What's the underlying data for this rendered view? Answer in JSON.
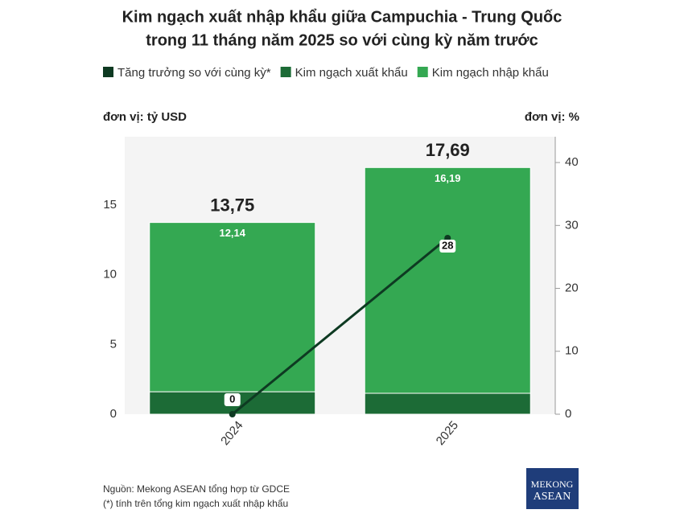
{
  "chart_data": {
    "type": "bar",
    "stacked": true,
    "title": [
      "Kim ngạch xuất nhập khẩu giữa Campuchia - Trung Quốc",
      "trong 11 tháng năm 2025 so với cùng kỳ năm trước"
    ],
    "y_label": "đơn vị: tỷ USD",
    "y2_label": "đơn vị: %",
    "categories": [
      "2024",
      "2025"
    ],
    "series": [
      {
        "name": "Tăng trưởng so với cùng kỳ*",
        "type": "line",
        "axis": "y2",
        "color": "#0e3a22",
        "values": [
          0,
          28
        ]
      },
      {
        "name": "Kim ngạch xuất khẩu",
        "color": "#1c6b36",
        "values": [
          1.61,
          1.5
        ]
      },
      {
        "name": "Kim ngạch nhập khẩu",
        "color": "#34a852",
        "values": [
          12.14,
          16.19
        ],
        "value_labels": [
          "12,14",
          "16,19"
        ]
      }
    ],
    "totals": [
      13.75,
      17.69
    ],
    "total_labels": [
      "13,75",
      "17,69"
    ],
    "ylim": [
      0,
      19.9
    ],
    "yticks": [
      0,
      5,
      10,
      15
    ],
    "y2lim": [
      0,
      44.1
    ],
    "y2ticks": [
      0,
      10,
      20,
      30,
      40
    ],
    "notes": [
      "Nguồn: Mekong ASEAN tổng hợp từ GDCE",
      "(*) tính trên tổng kim ngạch xuất nhập khẩu"
    ],
    "logo": [
      "MEKONG",
      "ASEAN"
    ]
  }
}
